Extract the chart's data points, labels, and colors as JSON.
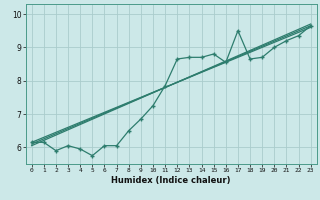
{
  "title": "",
  "xlabel": "Humidex (Indice chaleur)",
  "bg_color": "#cce8e8",
  "line_color": "#2e7d6e",
  "grid_color": "#aacccc",
  "xlim": [
    -0.5,
    23.5
  ],
  "ylim": [
    5.5,
    10.3
  ],
  "yticks": [
    6,
    7,
    8,
    9,
    10
  ],
  "xticks": [
    0,
    1,
    2,
    3,
    4,
    5,
    6,
    7,
    8,
    9,
    10,
    11,
    12,
    13,
    14,
    15,
    16,
    17,
    18,
    19,
    20,
    21,
    22,
    23
  ],
  "jagged_x": [
    0,
    1,
    2,
    3,
    4,
    5,
    6,
    7,
    8,
    9,
    10,
    11,
    12,
    13,
    14,
    15,
    16,
    17,
    18,
    19,
    20,
    21,
    22,
    23
  ],
  "jagged_y": [
    6.15,
    6.15,
    5.9,
    6.05,
    5.95,
    5.75,
    6.05,
    6.05,
    6.5,
    6.85,
    7.25,
    7.85,
    8.65,
    8.7,
    8.7,
    8.8,
    8.55,
    9.5,
    8.65,
    8.7,
    9.0,
    9.2,
    9.35,
    9.65
  ],
  "trend1_x": [
    0,
    23
  ],
  "trend1_y": [
    6.1,
    9.65
  ],
  "trend2_x": [
    0,
    23
  ],
  "trend2_y": [
    6.05,
    9.7
  ],
  "trend3_x": [
    0,
    23
  ],
  "trend3_y": [
    6.15,
    9.6
  ]
}
